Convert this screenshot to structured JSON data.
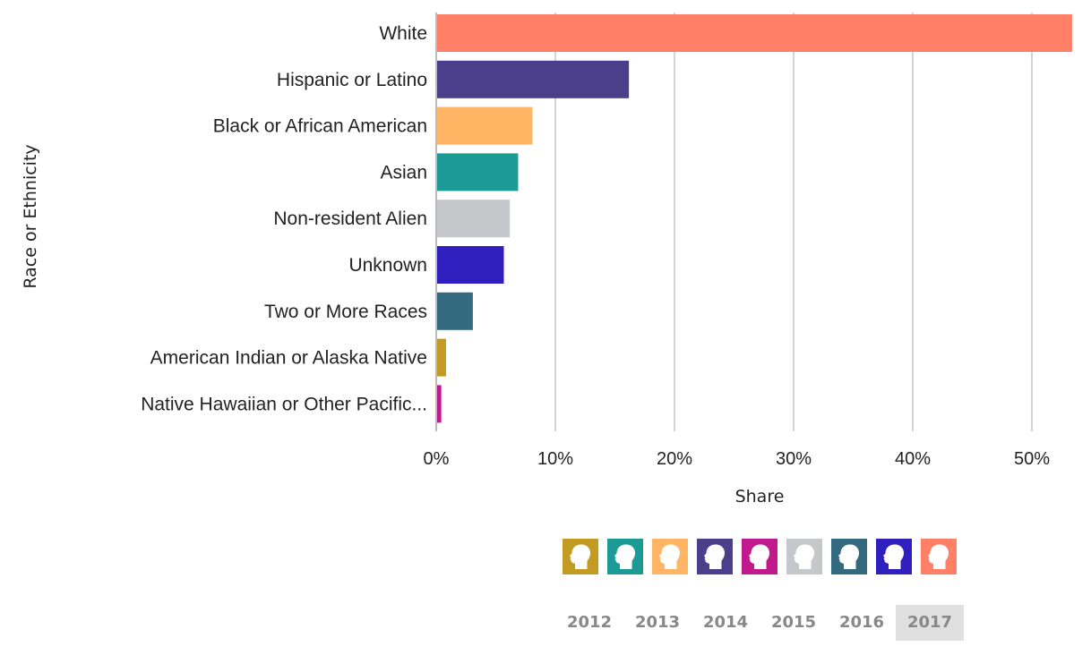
{
  "chart_data": {
    "type": "bar",
    "orientation": "horizontal",
    "xlabel": "Share",
    "ylabel": "Race or Ethnicity",
    "xlim": [
      0,
      53.5
    ],
    "xticks": [
      "0%",
      "10%",
      "20%",
      "30%",
      "40%",
      "50%"
    ],
    "xtick_values": [
      0,
      10,
      20,
      30,
      40,
      50
    ],
    "grid": true,
    "categories": [
      "White",
      "Hispanic or Latino",
      "Black or African American",
      "Asian",
      "Non-resident Alien",
      "Unknown",
      "Two or More Races",
      "American Indian or Alaska Native",
      "Native Hawaiian or Other Pacific..."
    ],
    "values": [
      53.3,
      16.1,
      8.0,
      6.8,
      6.1,
      5.6,
      3.0,
      0.75,
      0.35
    ],
    "colors": [
      "#ff8066",
      "#4b3f8c",
      "#ffb563",
      "#1b9a96",
      "#c6c7cb",
      "#301fbf",
      "#336a80",
      "#c39a22",
      "#c01a8c"
    ]
  },
  "legend": {
    "icon": "person-head-icon",
    "colors": [
      "#c39a22",
      "#1b9a96",
      "#ffb563",
      "#4b3f8c",
      "#c01a8c",
      "#c6c7cb",
      "#336a80",
      "#301fbf",
      "#ff8066"
    ]
  },
  "years": [
    "2012",
    "2013",
    "2014",
    "2015",
    "2016",
    "2017"
  ],
  "selected_year": "2017"
}
